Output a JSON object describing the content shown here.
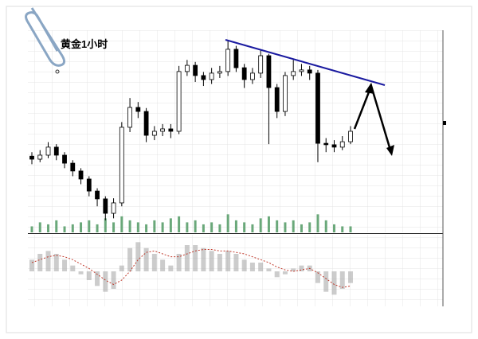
{
  "chart_data": [
    {
      "type": "candlestick",
      "title": "黄金1小时",
      "ylim": [
        0,
        100
      ],
      "y2lim": [
        0,
        100
      ],
      "color": "#000000",
      "open": [
        38,
        36.5,
        38.5,
        42.5,
        38.5,
        34.5,
        30.6,
        26.6,
        20.6,
        16.7,
        9.5,
        14.7,
        52.4,
        62.3,
        60.3,
        48.4,
        50.4,
        51.6,
        50.4,
        80.2,
        83.3,
        78.2,
        76.2,
        79.4,
        80.2,
        91.3,
        82.1,
        76.2,
        79.4,
        88.1,
        72.2,
        60.3,
        78.2,
        80.2,
        81,
        79.4,
        44.4,
        43.7,
        42.5,
        45.2
      ],
      "high": [
        40,
        41,
        45,
        44,
        40,
        36,
        32,
        28,
        22,
        18,
        17,
        55,
        67,
        65,
        62,
        53,
        54,
        54,
        83,
        86,
        85,
        80,
        82,
        83,
        96,
        93,
        84,
        82,
        91,
        89,
        74,
        80,
        86,
        84,
        83,
        81,
        47,
        46,
        48,
        53
      ],
      "low": [
        34,
        35,
        37,
        36,
        32,
        28,
        24,
        18,
        13,
        6,
        7,
        13,
        50,
        57,
        45,
        46,
        48,
        47,
        49,
        78,
        75,
        73,
        74,
        77,
        78,
        80,
        72,
        74,
        77,
        44,
        57,
        58,
        76,
        78,
        76,
        35,
        40,
        40,
        41,
        44
      ],
      "close": [
        36.5,
        38.5,
        42.5,
        38.5,
        34.5,
        30.6,
        26.6,
        20.6,
        16.7,
        9.5,
        14.7,
        52.4,
        62.3,
        60.3,
        48.4,
        50.4,
        51.6,
        50.4,
        80.2,
        83.3,
        78.2,
        76.2,
        79.4,
        80.2,
        91.3,
        82.1,
        76.2,
        79.4,
        88.1,
        72.2,
        60.3,
        78.2,
        80.2,
        81,
        79.4,
        44.4,
        43.7,
        42.5,
        45.2,
        50.4
      ],
      "volume": {
        "color": "#6aa87a",
        "axis": "y2",
        "values": [
          3,
          5,
          4,
          6,
          3,
          4,
          5,
          6,
          4,
          7,
          5,
          8,
          6,
          5,
          4,
          6,
          5,
          7,
          8,
          5,
          6,
          4,
          5,
          4,
          9,
          6,
          5,
          4,
          7,
          8,
          6,
          5,
          6,
          4,
          5,
          9,
          6,
          4,
          3,
          3
        ]
      }
    },
    {
      "type": "histogram-line",
      "ylim": [
        -12,
        12
      ],
      "series": [
        {
          "color": "#aaaaaa",
          "values": [
            4,
            6,
            7,
            6,
            4,
            2,
            -1,
            -3,
            -5,
            -7,
            -6,
            2,
            8,
            10,
            8,
            6,
            4,
            2,
            6,
            9,
            9,
            8,
            7,
            6,
            7,
            6,
            4,
            3,
            3,
            1,
            -2,
            -1,
            1,
            2,
            2,
            -4,
            -7,
            -8,
            -6,
            -4
          ]
        },
        {
          "color": "#c0392b",
          "values": [
            3,
            4,
            5,
            5.5,
            5,
            4,
            2.5,
            1,
            -1,
            -3,
            -4.5,
            -3,
            0,
            4,
            6.5,
            7,
            6,
            5,
            5,
            6,
            7,
            7.5,
            7.5,
            7,
            7,
            6.5,
            6,
            5,
            4,
            3,
            1.5,
            0.5,
            0,
            0.5,
            1,
            -0.5,
            -2.5,
            -4.5,
            -5.5,
            -5
          ]
        }
      ]
    }
  ]
}
